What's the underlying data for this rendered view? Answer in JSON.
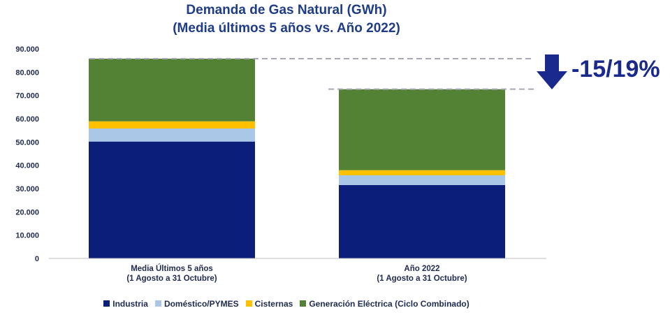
{
  "chart_data": {
    "type": "bar",
    "stacked": true,
    "title": "Demanda de Gas Natural (GWh)",
    "subtitle": "(Media últimos 5 años vs. Año 2022)",
    "categories": [
      [
        "Media Últimos 5 años",
        "(1 Agosto a 31 Octubre)"
      ],
      [
        "Año 2022",
        "(1 Agosto a 31 Octubre)"
      ]
    ],
    "series": [
      {
        "name": "Industria",
        "color": "#0b1e7a",
        "values": [
          50200,
          31500
        ]
      },
      {
        "name": "Doméstico/PYMES",
        "color": "#a9c7e6",
        "values": [
          5600,
          4200
        ]
      },
      {
        "name": "Cisternas",
        "color": "#ffc000",
        "values": [
          3100,
          2200
        ]
      },
      {
        "name": "Generación Eléctrica (Ciclo Combinado)",
        "color": "#548235",
        "values": [
          26900,
          34800
        ]
      }
    ],
    "ylim": [
      0,
      90000
    ],
    "yticks": [
      0,
      10000,
      20000,
      30000,
      40000,
      50000,
      60000,
      70000,
      80000,
      90000
    ],
    "ytick_labels": [
      "0",
      "10.000",
      "20.000",
      "30.000",
      "40.000",
      "50.000",
      "60.000",
      "70.000",
      "80.000",
      "90.000"
    ],
    "grid": false,
    "legend_position": "bottom",
    "reference_lines": [
      85800,
      72700
    ],
    "annotation": {
      "text": "-15/19%",
      "icon": "down-arrow-icon",
      "color": "#1a2a8c"
    }
  }
}
